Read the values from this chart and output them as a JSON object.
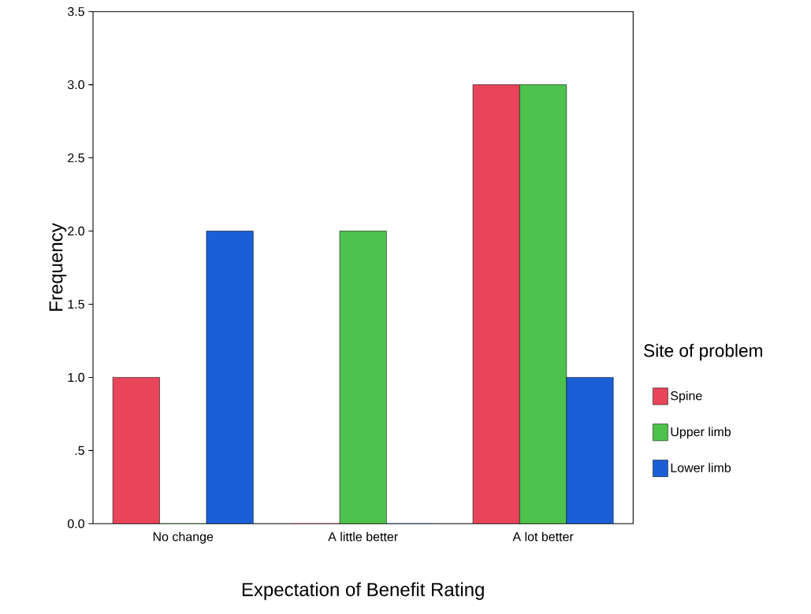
{
  "chart_data": {
    "type": "bar",
    "xlabel": "Expectation of Benefit Rating",
    "ylabel": "Frequency",
    "legend_title": "Site of problem",
    "categories": [
      "No change",
      "A little better",
      "A lot better"
    ],
    "series": [
      {
        "name": "Spine",
        "color": "#e8455a",
        "values": [
          1,
          0,
          3
        ]
      },
      {
        "name": "Upper limb",
        "color": "#4dc24d",
        "values": [
          0,
          2,
          3
        ]
      },
      {
        "name": "Lower limb",
        "color": "#1a5fd6",
        "values": [
          2,
          0,
          1
        ]
      }
    ],
    "ylim": [
      0,
      3.5
    ],
    "yticks": [
      {
        "value": 0,
        "label": "0.0"
      },
      {
        "value": 0.5,
        "label": ".5"
      },
      {
        "value": 1,
        "label": "1.0"
      },
      {
        "value": 1.5,
        "label": "1.5"
      },
      {
        "value": 2,
        "label": "2.0"
      },
      {
        "value": 2.5,
        "label": "2.5"
      },
      {
        "value": 3,
        "label": "3.0"
      },
      {
        "value": 3.5,
        "label": "3.5"
      }
    ],
    "grid": false,
    "legend": "right"
  }
}
